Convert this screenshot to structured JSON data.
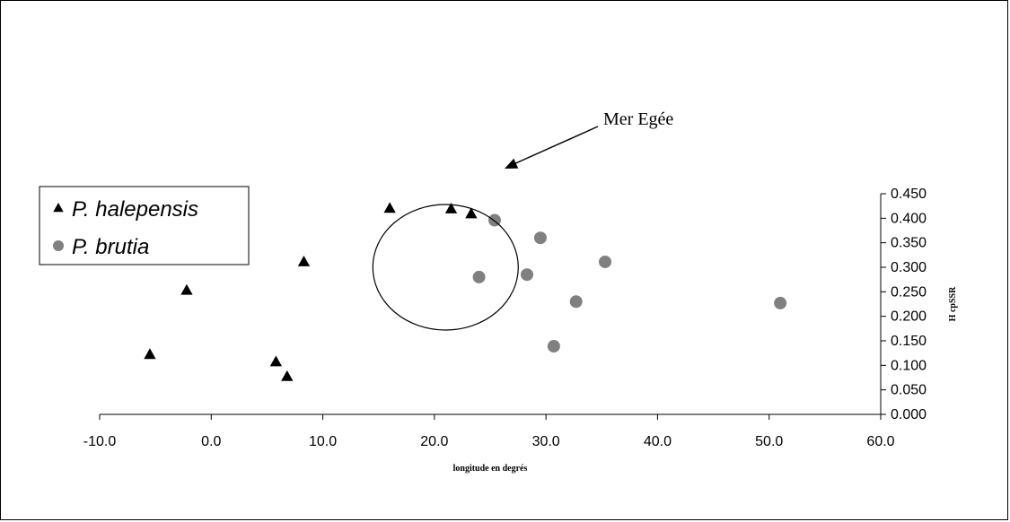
{
  "chart_data": {
    "type": "scatter",
    "xlabel": "longitude en degrés",
    "ylabel": "H cpSSR",
    "xlim": [
      -10,
      60
    ],
    "ylim": [
      0,
      0.45
    ],
    "x_ticks": [
      "-10.0",
      "0.0",
      "10.0",
      "20.0",
      "30.0",
      "40.0",
      "50.0",
      "60.0"
    ],
    "y_ticks": [
      "0.000",
      "0.050",
      "0.100",
      "0.150",
      "0.200",
      "0.250",
      "0.300",
      "0.350",
      "0.400",
      "0.450"
    ],
    "y_axis_side": "right",
    "grid": false,
    "legend_position": "left",
    "series": [
      {
        "name": "P. halepensis",
        "marker": "triangle",
        "color": "#000000",
        "points": [
          [
            -5.5,
            0.122
          ],
          [
            -2.2,
            0.253
          ],
          [
            5.8,
            0.107
          ],
          [
            6.8,
            0.077
          ],
          [
            8.3,
            0.311
          ],
          [
            16.0,
            0.42
          ],
          [
            21.5,
            0.419
          ],
          [
            23.3,
            0.409
          ]
        ]
      },
      {
        "name": "P. brutia",
        "marker": "circle",
        "color": "#808080",
        "points": [
          [
            24.0,
            0.28
          ],
          [
            25.4,
            0.396
          ],
          [
            28.3,
            0.285
          ],
          [
            29.5,
            0.36
          ],
          [
            30.7,
            0.139
          ],
          [
            32.7,
            0.23
          ],
          [
            35.3,
            0.311
          ],
          [
            51.0,
            0.227
          ]
        ]
      }
    ],
    "annotation": {
      "text": "Mer Egée"
    }
  }
}
